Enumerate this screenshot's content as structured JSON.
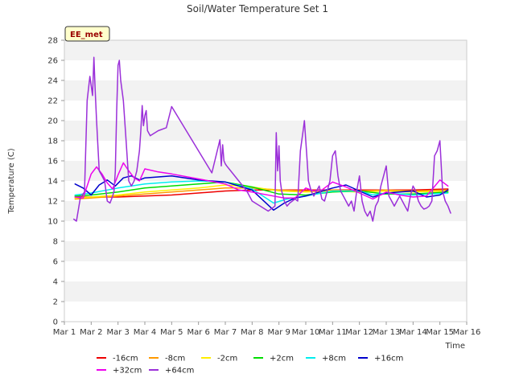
{
  "chart_data": {
    "type": "line",
    "title": "Soil/Water Temperature Set 1",
    "xlabel": "Time",
    "ylabel": "Temperature (C)",
    "ylim": [
      0,
      28
    ],
    "yticks": [
      0,
      2,
      4,
      6,
      8,
      10,
      12,
      14,
      16,
      18,
      20,
      22,
      24,
      26,
      28
    ],
    "xlim": [
      1,
      16
    ],
    "xticks": [
      {
        "v": 1,
        "label": "Mar 1"
      },
      {
        "v": 2,
        "label": "Mar 2"
      },
      {
        "v": 3,
        "label": "Mar 3"
      },
      {
        "v": 4,
        "label": "Mar 4"
      },
      {
        "v": 5,
        "label": "Mar 5"
      },
      {
        "v": 6,
        "label": "Mar 6"
      },
      {
        "v": 7,
        "label": "Mar 7"
      },
      {
        "v": 8,
        "label": "Mar 8"
      },
      {
        "v": 9,
        "label": "Mar 9"
      },
      {
        "v": 10,
        "label": "Mar 10"
      },
      {
        "v": 11,
        "label": "Mar 11"
      },
      {
        "v": 12,
        "label": "Mar 12"
      },
      {
        "v": 13,
        "label": "Mar 13"
      },
      {
        "v": 14,
        "label": "Mar 14"
      },
      {
        "v": 15,
        "label": "Mar 15"
      },
      {
        "v": 16,
        "label": "Mar 16"
      }
    ],
    "annotation": "EE_met",
    "legend_placement": "bottom",
    "grid": "horizontal bands",
    "series": [
      {
        "name": "-16cm",
        "color": "#ee0000",
        "x": [
          1.4,
          2.0,
          3.0,
          4.0,
          5.0,
          6.0,
          7.0,
          8.0,
          9.0,
          10.0,
          11.0,
          12.0,
          13.0,
          14.0,
          15.3
        ],
        "y": [
          12.4,
          12.4,
          12.4,
          12.5,
          12.6,
          12.8,
          13.0,
          13.1,
          13.1,
          13.1,
          13.1,
          13.1,
          13.1,
          13.1,
          13.2
        ]
      },
      {
        "name": "-8cm",
        "color": "#ff9900",
        "x": [
          1.4,
          2.0,
          3.0,
          4.0,
          5.0,
          6.0,
          7.0,
          8.0,
          9.0,
          10.0,
          11.0,
          12.0,
          13.0,
          14.0,
          15.3
        ],
        "y": [
          12.2,
          12.3,
          12.5,
          12.7,
          12.9,
          13.1,
          13.3,
          13.3,
          13.1,
          13.0,
          13.1,
          13.0,
          13.1,
          13.0,
          13.1
        ]
      },
      {
        "name": "-2cm",
        "color": "#ffee00",
        "x": [
          1.4,
          2.0,
          3.0,
          4.0,
          5.0,
          6.0,
          7.0,
          8.0,
          9.0,
          10.0,
          11.0,
          12.0,
          13.0,
          14.0,
          15.3
        ],
        "y": [
          12.3,
          12.4,
          12.6,
          12.9,
          13.1,
          13.3,
          13.6,
          13.4,
          13.0,
          12.9,
          13.0,
          12.9,
          13.0,
          12.9,
          13.0
        ]
      },
      {
        "name": "+2cm",
        "color": "#00dd00",
        "x": [
          1.4,
          2.0,
          3.0,
          4.0,
          5.0,
          6.0,
          7.0,
          8.0,
          9.0,
          10.0,
          11.0,
          12.0,
          13.0,
          14.0,
          15.3
        ],
        "y": [
          12.5,
          12.6,
          12.9,
          13.3,
          13.5,
          13.7,
          13.9,
          13.4,
          12.7,
          12.6,
          12.9,
          13.0,
          12.7,
          12.7,
          12.9
        ]
      },
      {
        "name": "+8cm",
        "color": "#00eeee",
        "x": [
          1.4,
          2.0,
          3.0,
          4.0,
          5.0,
          6.0,
          7.0,
          8.0,
          8.8,
          9.3,
          10.0,
          11.0,
          12.0,
          12.5,
          13.0,
          14.0,
          15.3
        ],
        "y": [
          12.6,
          12.8,
          13.3,
          13.7,
          13.9,
          14.0,
          13.9,
          13.2,
          11.8,
          12.2,
          12.5,
          13.0,
          13.0,
          12.6,
          12.8,
          12.6,
          12.8
        ]
      },
      {
        "name": "+16cm",
        "color": "#0000cc",
        "x": [
          1.4,
          1.7,
          2.0,
          2.3,
          2.6,
          2.9,
          3.2,
          3.5,
          3.8,
          4.0,
          4.5,
          5.0,
          6.0,
          7.0,
          7.5,
          8.0,
          8.8,
          9.2,
          9.6,
          10.0,
          10.5,
          11.0,
          11.5,
          12.0,
          12.5,
          13.0,
          13.5,
          14.0,
          14.5,
          15.0,
          15.3
        ],
        "y": [
          13.7,
          13.3,
          12.6,
          13.6,
          14.1,
          13.5,
          14.3,
          14.5,
          14.1,
          14.3,
          14.4,
          14.5,
          14.1,
          13.9,
          13.5,
          13.1,
          11.1,
          11.8,
          12.3,
          12.5,
          12.9,
          13.3,
          13.6,
          13.0,
          12.4,
          12.8,
          12.9,
          13.0,
          12.4,
          12.6,
          13.1
        ]
      },
      {
        "name": "+32cm",
        "color": "#ee00ee",
        "x": [
          1.4,
          1.7,
          2.0,
          2.2,
          2.4,
          2.6,
          2.8,
          3.0,
          3.2,
          3.4,
          3.6,
          3.8,
          4.0,
          4.5,
          5.0,
          6.0,
          7.0,
          7.5,
          8.0,
          8.8,
          9.2,
          9.6,
          10.0,
          10.3,
          10.6,
          11.0,
          11.5,
          12.0,
          12.5,
          13.0,
          13.5,
          14.0,
          14.5,
          15.0,
          15.3
        ],
        "y": [
          12.4,
          12.3,
          14.7,
          15.4,
          14.7,
          13.8,
          13.2,
          14.6,
          15.8,
          15.0,
          14.3,
          14.0,
          15.2,
          14.9,
          14.7,
          14.2,
          13.7,
          13.1,
          12.9,
          12.5,
          12.3,
          12.3,
          13.3,
          13.0,
          13.1,
          13.9,
          13.4,
          12.8,
          12.2,
          12.9,
          12.6,
          12.4,
          12.5,
          14.1,
          13.5
        ]
      },
      {
        "name": "+64cm",
        "color": "#9b30d9",
        "x": [
          1.35,
          1.45,
          1.6,
          1.75,
          1.85,
          1.95,
          2.05,
          2.1,
          2.15,
          2.2,
          2.3,
          2.4,
          2.5,
          2.6,
          2.7,
          2.8,
          2.85,
          2.9,
          2.95,
          3.0,
          3.05,
          3.1,
          3.2,
          3.3,
          3.4,
          3.5,
          3.6,
          3.7,
          3.8,
          3.85,
          3.9,
          3.95,
          4.0,
          4.05,
          4.1,
          4.2,
          4.5,
          4.8,
          5.0,
          6.5,
          6.8,
          6.85,
          6.9,
          6.95,
          7.0,
          7.05,
          7.2,
          7.5,
          7.8,
          8.0,
          8.3,
          8.6,
          8.85,
          8.9,
          8.95,
          9.0,
          9.05,
          9.1,
          9.15,
          9.2,
          9.3,
          9.4,
          9.5,
          9.6,
          9.7,
          9.8,
          9.9,
          9.95,
          10.0,
          10.05,
          10.1,
          10.2,
          10.3,
          10.4,
          10.5,
          10.6,
          10.7,
          10.8,
          10.9,
          11.0,
          11.1,
          11.2,
          11.3,
          11.4,
          11.5,
          11.6,
          11.7,
          11.8,
          11.9,
          12.0,
          12.1,
          12.2,
          12.3,
          12.4,
          12.5,
          12.6,
          12.7,
          12.8,
          12.9,
          13.0,
          13.1,
          13.2,
          13.3,
          13.4,
          13.5,
          13.6,
          13.7,
          13.8,
          13.9,
          14.0,
          14.1,
          14.2,
          14.3,
          14.4,
          14.5,
          14.6,
          14.7,
          14.8,
          14.9,
          15.0,
          15.1,
          15.2,
          15.3,
          15.4
        ],
        "y": [
          10.2,
          10.0,
          12.4,
          12.9,
          22.0,
          24.4,
          22.5,
          26.3,
          23.0,
          20.0,
          15.0,
          14.5,
          14.0,
          12.0,
          11.8,
          12.5,
          13.0,
          15.0,
          21.0,
          25.5,
          26.0,
          24.0,
          22.0,
          18.0,
          14.0,
          13.5,
          14.0,
          15.0,
          17.0,
          19.0,
          21.5,
          19.5,
          20.5,
          21.0,
          19.0,
          18.5,
          19.0,
          19.3,
          21.4,
          14.8,
          18.1,
          15.5,
          17.6,
          16.0,
          15.7,
          15.5,
          15.0,
          14.0,
          13.0,
          12.0,
          11.5,
          11.0,
          11.5,
          18.8,
          15.0,
          17.5,
          14.0,
          13.0,
          12.5,
          12.0,
          11.5,
          11.8,
          12.0,
          12.2,
          12.0,
          17.0,
          19.0,
          20.0,
          18.0,
          16.0,
          14.0,
          13.0,
          12.5,
          13.0,
          13.5,
          12.2,
          12.0,
          13.0,
          14.0,
          16.5,
          17.0,
          14.5,
          13.0,
          12.5,
          12.0,
          11.5,
          12.0,
          11.0,
          13.0,
          14.5,
          12.0,
          11.0,
          10.5,
          11.0,
          10.0,
          11.5,
          12.0,
          13.5,
          14.5,
          15.5,
          12.5,
          12.0,
          11.5,
          12.0,
          12.5,
          12.0,
          11.5,
          11.0,
          12.5,
          13.5,
          13.0,
          12.0,
          11.5,
          11.2,
          11.3,
          11.5,
          12.0,
          16.5,
          17.0,
          18.0,
          13.0,
          12.0,
          11.5,
          10.8
        ]
      }
    ]
  }
}
